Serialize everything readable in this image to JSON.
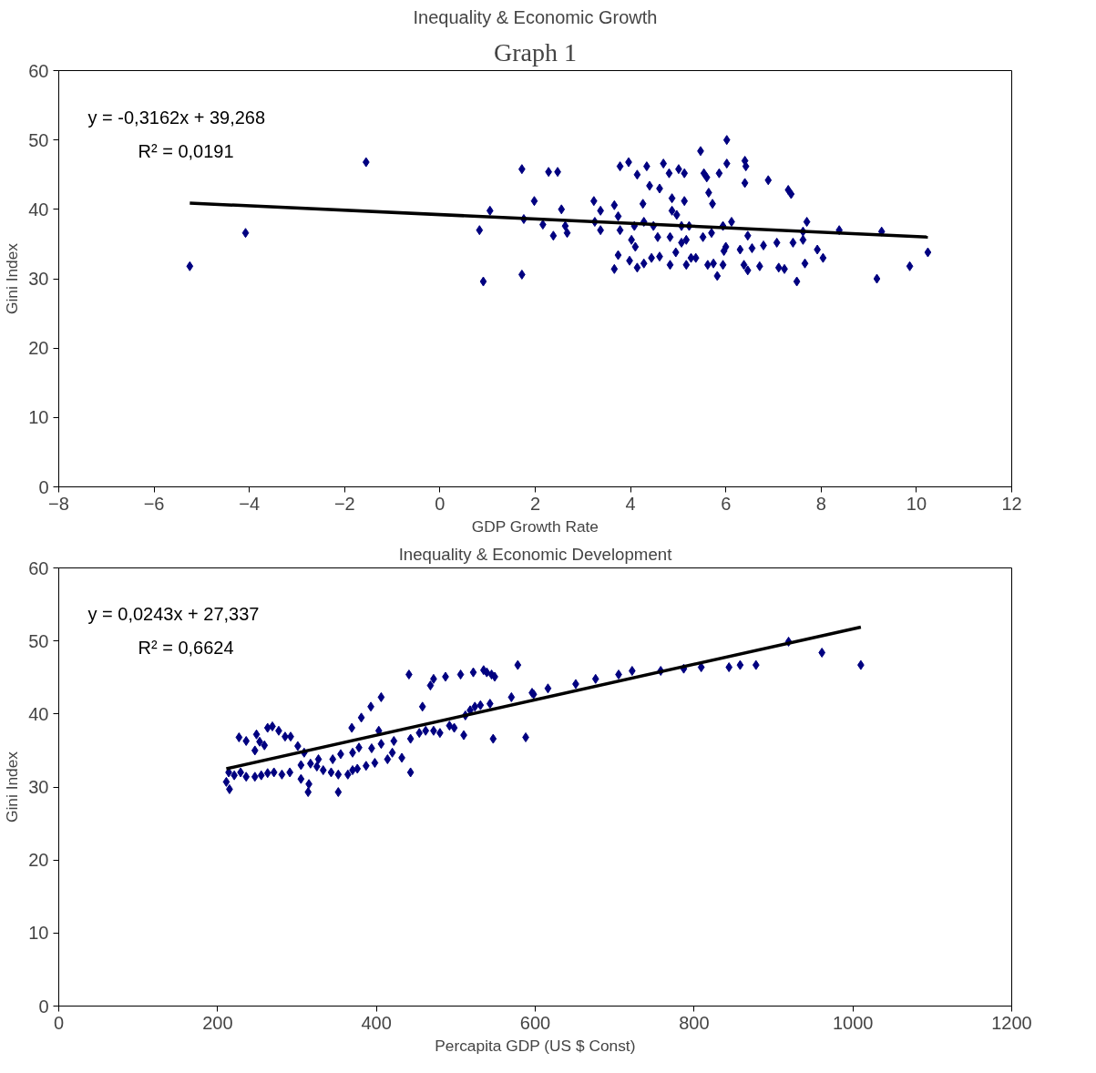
{
  "chart_data": [
    {
      "type": "scatter",
      "title": "Graph 1",
      "subtitle": "Inequality & Economic Growth",
      "xlabel": "GDP Growth Rate",
      "ylabel": "Gini Index",
      "grid": false,
      "xlim": [
        -8,
        12
      ],
      "xticks": [
        -8,
        -6,
        -4,
        -2,
        0,
        2,
        4,
        6,
        8,
        10,
        12
      ],
      "ylim": [
        0,
        60
      ],
      "yticks": [
        0,
        10,
        20,
        30,
        40,
        50,
        60
      ],
      "annotations": [
        "y = -0,3162x + 39,268",
        "R² = 0,0191"
      ],
      "series": [
        {
          "color": "#000080",
          "marker": "diamond",
          "x": [
            -5.25,
            -4.08,
            -1.55,
            0.83,
            0.91,
            1.05,
            1.72,
            1.76,
            1.72,
            1.98,
            2.16,
            2.28,
            2.47,
            2.38,
            2.55,
            2.67,
            2.63,
            3.23,
            3.25,
            3.37,
            3.37,
            3.66,
            3.74,
            3.78,
            3.74,
            3.66,
            3.78,
            3.96,
            4.14,
            4.34,
            4.26,
            4.4,
            4.61,
            4.69,
            4.81,
            5.01,
            5.13,
            4.87,
            5.13,
            4.87,
            4.97,
            5.07,
            5.23,
            4.08,
            4.28,
            4.48,
            4.02,
            4.1,
            4.57,
            4.83,
            5.07,
            5.17,
            3.98,
            4.14,
            4.28,
            4.44,
            4.61,
            4.83,
            4.95,
            5.17,
            5.27,
            5.37,
            5.47,
            5.54,
            5.6,
            5.64,
            5.72,
            5.52,
            5.7,
            5.62,
            5.74,
            5.82,
            5.86,
            6.02,
            6.02,
            5.94,
            6.12,
            6.0,
            5.96,
            5.94,
            6.3,
            6.4,
            6.42,
            6.4,
            6.46,
            6.55,
            6.38,
            6.46,
            6.89,
            7.31,
            7.37,
            7.7,
            7.62,
            6.79,
            7.07,
            7.41,
            7.62,
            7.92,
            8.04,
            6.71,
            7.11,
            7.23,
            7.66,
            7.49,
            8.38,
            9.27,
            9.17,
            9.86,
            10.24
          ],
          "values": [
            31.8,
            36.6,
            46.8,
            37.0,
            29.6,
            39.8,
            45.8,
            38.6,
            30.6,
            41.2,
            37.8,
            45.4,
            45.4,
            36.2,
            40.0,
            36.6,
            37.6,
            41.2,
            38.2,
            39.8,
            37.0,
            40.6,
            39.0,
            37.0,
            33.4,
            31.4,
            46.2,
            46.8,
            45.0,
            46.2,
            40.8,
            43.4,
            43.0,
            46.6,
            45.2,
            45.8,
            45.2,
            41.6,
            41.2,
            39.8,
            39.2,
            37.6,
            37.6,
            37.6,
            38.2,
            37.6,
            35.6,
            34.6,
            36.0,
            36.0,
            35.2,
            35.6,
            32.6,
            31.6,
            32.2,
            33.0,
            33.2,
            32.0,
            33.8,
            32.0,
            33.0,
            33.0,
            48.4,
            45.2,
            44.6,
            42.4,
            40.8,
            36.0,
            36.6,
            32.0,
            32.2,
            30.4,
            45.2,
            50.0,
            46.6,
            37.6,
            38.2,
            34.6,
            34.0,
            32.0,
            34.2,
            47.0,
            46.2,
            43.8,
            36.2,
            34.4,
            32.0,
            31.2,
            44.2,
            42.8,
            42.2,
            38.2,
            36.8,
            34.8,
            35.2,
            35.2,
            35.6,
            34.2,
            33.0,
            31.8,
            31.6,
            31.4,
            32.2,
            29.6,
            37.0,
            36.8,
            30.0,
            31.8,
            33.8
          ]
        },
        {
          "type": "line",
          "color": "#000000",
          "x": [
            -5.25,
            10.24
          ],
          "values": [
            40.9,
            36.0
          ]
        }
      ]
    },
    {
      "type": "scatter",
      "title": "Inequality & Economic Development",
      "xlabel": "Percapita GDP (US $ Const)",
      "ylabel": "Gini Index",
      "grid": false,
      "xlim": [
        0,
        1200
      ],
      "xticks": [
        0,
        200,
        400,
        600,
        800,
        1000,
        1200
      ],
      "ylim": [
        0,
        60
      ],
      "yticks": [
        0,
        10,
        20,
        30,
        40,
        50,
        60
      ],
      "annotations": [
        "y = 0,0243x + 27,337",
        "R² = 0,6624"
      ],
      "series": [
        {
          "color": "#000080",
          "marker": "diamond",
          "x": [
            211,
            215,
            214,
            221,
            229,
            236,
            227,
            236,
            247,
            249,
            253,
            259,
            263,
            269,
            277,
            285,
            292,
            247,
            255,
            263,
            271,
            281,
            291,
            301,
            305,
            309,
            305,
            315,
            314,
            317,
            327,
            325,
            333,
            343,
            345,
            355,
            352,
            352,
            364,
            369,
            370,
            376,
            387,
            370,
            378,
            381,
            393,
            406,
            394,
            398,
            406,
            403,
            414,
            420,
            422,
            432,
            441,
            443,
            443,
            454,
            458,
            462,
            468,
            472,
            472,
            480,
            487,
            492,
            498,
            506,
            510,
            512,
            518,
            522,
            524,
            531,
            535,
            539,
            545,
            549,
            543,
            547,
            570,
            578,
            588,
            596,
            598,
            616,
            651,
            676,
            705,
            722,
            758,
            787,
            809,
            844,
            858,
            878,
            919,
            961,
            1010
          ],
          "values": [
            30.7,
            29.7,
            32.0,
            31.6,
            32.0,
            31.4,
            36.8,
            36.3,
            35.0,
            37.2,
            36.2,
            35.7,
            38.1,
            38.3,
            37.7,
            36.9,
            36.9,
            31.4,
            31.6,
            31.9,
            32.0,
            31.7,
            32.0,
            35.6,
            33.0,
            34.7,
            31.1,
            30.4,
            29.3,
            33.2,
            33.8,
            32.8,
            32.3,
            32.0,
            33.8,
            34.5,
            31.7,
            29.3,
            31.7,
            38.1,
            32.3,
            32.5,
            32.9,
            34.7,
            35.4,
            39.5,
            41.0,
            42.3,
            35.3,
            33.3,
            35.9,
            37.7,
            33.8,
            34.7,
            36.3,
            34.0,
            45.4,
            32.0,
            36.6,
            37.4,
            41.0,
            37.7,
            43.9,
            44.8,
            37.7,
            37.4,
            45.1,
            38.4,
            38.1,
            45.4,
            37.1,
            39.8,
            40.5,
            45.7,
            41.0,
            41.2,
            46.0,
            45.7,
            45.4,
            45.1,
            41.4,
            36.6,
            42.3,
            46.7,
            36.8,
            42.9,
            42.7,
            43.5,
            44.1,
            44.8,
            45.4,
            45.9,
            45.9,
            46.2,
            46.4,
            46.4,
            46.7,
            46.7,
            49.9,
            48.4,
            46.7
          ]
        },
        {
          "type": "line",
          "color": "#000000",
          "x": [
            211,
            1010
          ],
          "values": [
            32.5,
            51.9
          ]
        }
      ]
    }
  ]
}
